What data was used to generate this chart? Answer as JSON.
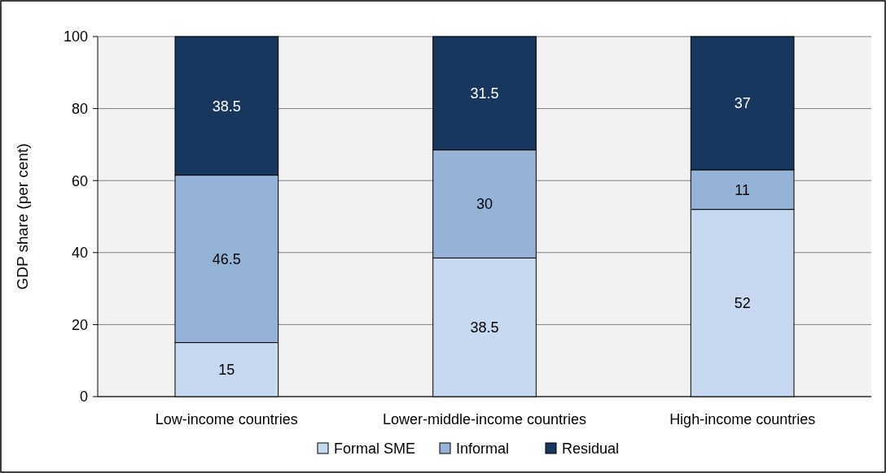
{
  "chart_data": {
    "type": "bar",
    "stacked": true,
    "ylabel": "GDP share (per cent)",
    "categories": [
      "Low-income countries",
      "Lower-middle-income countries",
      "High-income countries"
    ],
    "series": [
      {
        "name": "Formal SME",
        "color": "#c6d9f0",
        "values": [
          15,
          38.5,
          52
        ]
      },
      {
        "name": "Informal",
        "color": "#95b3d7",
        "values": [
          46.5,
          30,
          11
        ]
      },
      {
        "name": "Residual",
        "color": "#17375e",
        "values": [
          38.5,
          31.5,
          37
        ]
      }
    ],
    "ylim": [
      0,
      100
    ],
    "yticks": [
      0,
      20,
      40,
      60,
      80,
      100
    ],
    "grid": "y",
    "legend": "bottom",
    "data_labels": true
  }
}
